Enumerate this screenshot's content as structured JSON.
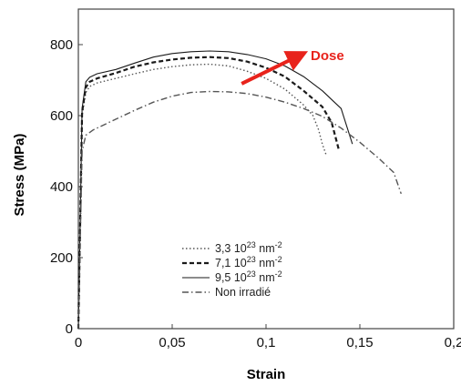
{
  "chart_data": {
    "type": "line",
    "title": "",
    "xlabel": "Strain",
    "ylabel": "Stress (MPa)",
    "xlim": [
      0,
      0.2
    ],
    "ylim": [
      0,
      900
    ],
    "x_ticks": [
      0,
      0.05,
      0.1,
      0.15,
      0.2
    ],
    "x_tick_labels": [
      "0",
      "0,05",
      "0,1",
      "0,15",
      "0,2"
    ],
    "y_ticks": [
      0,
      200,
      400,
      600,
      800
    ],
    "y_tick_labels": [
      "0",
      "200",
      "400",
      "600",
      "800"
    ],
    "grid": false,
    "legend_position": "bottom-center",
    "annotation": {
      "text": "Dose",
      "color": "#e8231c",
      "arrow_from": [
        0.087,
        690
      ],
      "arrow_to": [
        0.118,
        770
      ]
    },
    "series": [
      {
        "name_prefix": "3,3 10",
        "name_exp": "23",
        "name_unit": " nm",
        "name_unit_exp": "-2",
        "style": "dotted",
        "color": "#555555",
        "x": [
          0,
          0.002,
          0.004,
          0.006,
          0.01,
          0.02,
          0.03,
          0.04,
          0.05,
          0.06,
          0.07,
          0.08,
          0.09,
          0.1,
          0.11,
          0.12,
          0.125,
          0.128,
          0.13,
          0.132
        ],
        "y": [
          0,
          600,
          665,
          682,
          692,
          705,
          718,
          730,
          738,
          743,
          745,
          740,
          725,
          705,
          675,
          630,
          600,
          560,
          520,
          490
        ]
      },
      {
        "name_prefix": "7,1 10",
        "name_exp": "23",
        "name_unit": " nm",
        "name_unit_exp": "-2",
        "style": "dashed",
        "color": "#1a1a1a",
        "x": [
          0,
          0.002,
          0.004,
          0.006,
          0.01,
          0.02,
          0.03,
          0.04,
          0.05,
          0.06,
          0.07,
          0.08,
          0.09,
          0.1,
          0.11,
          0.12,
          0.13,
          0.135,
          0.137,
          0.139
        ],
        "y": [
          0,
          610,
          680,
          695,
          705,
          720,
          738,
          750,
          758,
          763,
          765,
          762,
          752,
          735,
          710,
          670,
          625,
          580,
          540,
          500
        ]
      },
      {
        "name_prefix": "9,5 10",
        "name_exp": "23",
        "name_unit": " nm",
        "name_unit_exp": "-2",
        "style": "solid",
        "color": "#1a1a1a",
        "x": [
          0,
          0.002,
          0.004,
          0.006,
          0.01,
          0.02,
          0.03,
          0.04,
          0.05,
          0.06,
          0.07,
          0.08,
          0.09,
          0.1,
          0.11,
          0.12,
          0.13,
          0.14,
          0.143,
          0.146
        ],
        "y": [
          0,
          620,
          695,
          708,
          718,
          730,
          748,
          765,
          775,
          780,
          782,
          780,
          772,
          760,
          740,
          710,
          670,
          620,
          570,
          520
        ]
      },
      {
        "name_prefix": "Non irradié",
        "name_exp": "",
        "name_unit": "",
        "name_unit_exp": "",
        "style": "dashdot",
        "color": "#555555",
        "x": [
          0,
          0.002,
          0.004,
          0.008,
          0.02,
          0.03,
          0.04,
          0.05,
          0.06,
          0.07,
          0.08,
          0.09,
          0.1,
          0.11,
          0.12,
          0.13,
          0.14,
          0.15,
          0.16,
          0.168,
          0.172
        ],
        "y": [
          0,
          500,
          545,
          560,
          590,
          615,
          638,
          655,
          665,
          668,
          667,
          662,
          652,
          638,
          620,
          598,
          565,
          525,
          480,
          440,
          380
        ]
      }
    ]
  }
}
